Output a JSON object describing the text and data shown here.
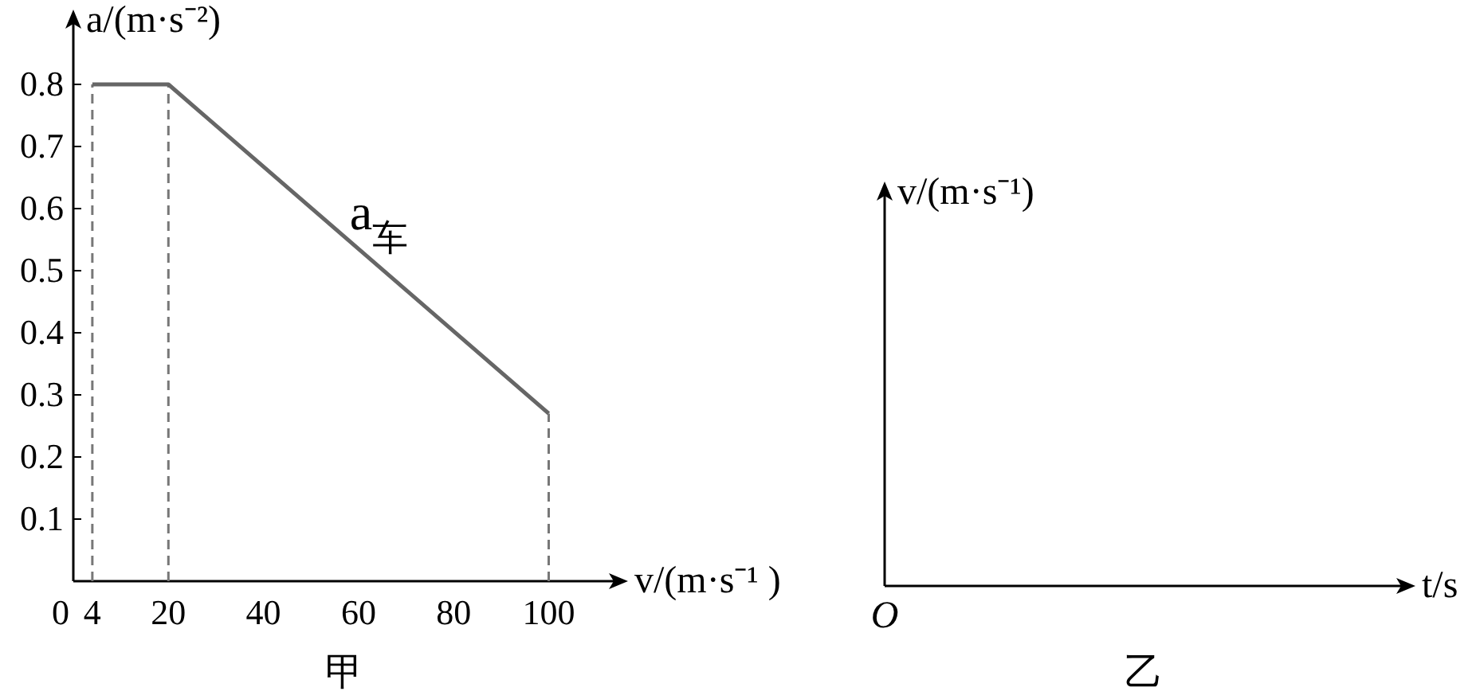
{
  "chart_data": [
    {
      "type": "line",
      "title": "甲",
      "xlabel": "v/(m·s⁻¹ )",
      "ylabel": "a/(m·s⁻²)",
      "x": [
        4,
        20,
        100
      ],
      "series": [
        {
          "color": "#666666",
          "values": [
            0.8,
            0.8,
            0.27
          ]
        }
      ],
      "xlim": [
        0,
        114
      ],
      "ylim": [
        0,
        0.9
      ],
      "xticks": [
        0,
        4,
        20,
        40,
        60,
        80,
        100
      ],
      "yticks": [
        0.1,
        0.2,
        0.3,
        0.4,
        0.5,
        0.6,
        0.7,
        0.8
      ],
      "ref_lines": [
        {
          "axis": "x",
          "value": 4,
          "line_style": "dashed",
          "color": "#777777"
        },
        {
          "axis": "x",
          "value": 20,
          "line_style": "dashed",
          "color": "#777777"
        },
        {
          "axis": "x",
          "value": 100,
          "line_style": "dashed",
          "color": "#777777"
        }
      ],
      "annotations": [
        "a$_{车}$"
      ],
      "grid": false
    },
    {
      "type": "other",
      "title": "乙",
      "xlabel": "t/s",
      "ylabel": "v/(m·s⁻¹)",
      "annotations": [
        "O"
      ]
    }
  ]
}
